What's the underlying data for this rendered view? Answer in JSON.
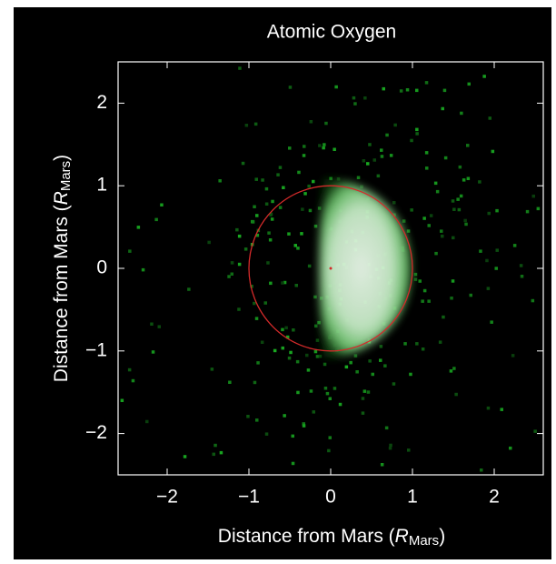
{
  "chart_data": {
    "type": "image",
    "title": "Atomic Oxygen",
    "x_label": [
      "Distance from Mars (",
      "R",
      "Mars",
      ")"
    ],
    "y_label": [
      "Distance from Mars (",
      "R",
      "Mars",
      ")"
    ],
    "xlim": [
      -2.6,
      2.6
    ],
    "ylim": [
      -2.5,
      2.5
    ],
    "xticks": [
      {
        "value": -2,
        "label": "−2"
      },
      {
        "value": -1,
        "label": "−1"
      },
      0,
      1,
      2
    ],
    "yticks": [
      {
        "value": -2,
        "label": "−2"
      },
      {
        "value": -1,
        "label": "−1"
      },
      0,
      1,
      2
    ],
    "reference_circle": {
      "x": 0,
      "y": 0,
      "r": 1,
      "color": "#d42a2a"
    }
  }
}
